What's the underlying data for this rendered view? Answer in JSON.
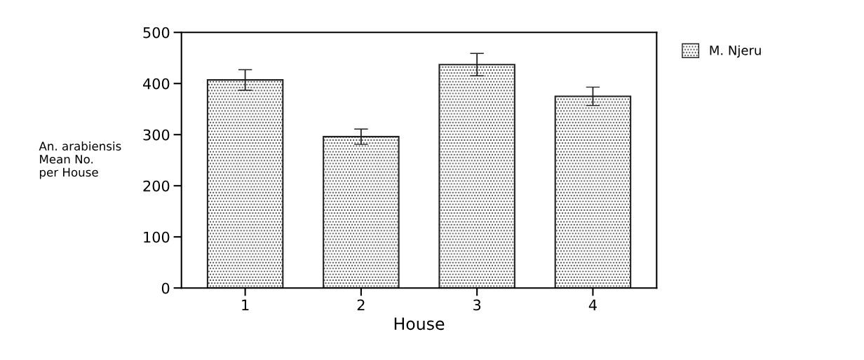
{
  "chart_data": {
    "type": "bar",
    "xlabel": "House",
    "ylabel": "An. arabiensis\nMean No.\nper House",
    "categories": [
      "1",
      "2",
      "3",
      "4"
    ],
    "series": [
      {
        "name": "M. Njeru",
        "color": "#222222",
        "values": [
          407,
          296,
          437,
          375
        ],
        "errors": [
          20,
          15,
          22,
          18
        ]
      }
    ],
    "ylim": [
      0,
      500
    ],
    "yticks": [
      0,
      100,
      200,
      300,
      400,
      500
    ],
    "grid": false,
    "legend": "top right"
  }
}
